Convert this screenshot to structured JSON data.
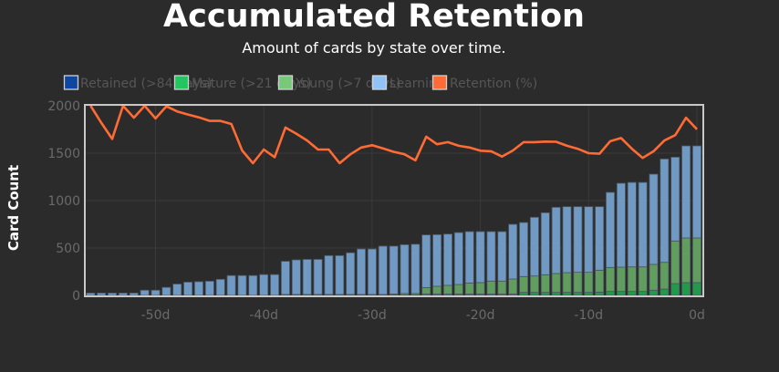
{
  "chart_data": {
    "type": "bar",
    "title": "Accumulated Retention",
    "subtitle": "Amount of cards by state over time.",
    "ylabel": "Card Count",
    "xlabel": "",
    "ylim": [
      0,
      2000
    ],
    "xlim": [
      -56,
      0
    ],
    "retention_ylim": [
      0,
      100
    ],
    "stacked": true,
    "grid": true,
    "legend_position": "top",
    "yticks": [
      "0",
      "500",
      "1000",
      "1500",
      "2000"
    ],
    "ytick_values": [
      0,
      500,
      1000,
      1500,
      2000
    ],
    "xticks": [
      "-50d",
      "-40d",
      "-30d",
      "-20d",
      "-10d",
      "0d"
    ],
    "xtick_values": [
      -50,
      -40,
      -30,
      -20,
      -10,
      0
    ],
    "x": [
      -56,
      -55,
      -54,
      -53,
      -52,
      -51,
      -50,
      -49,
      -48,
      -47,
      -46,
      -45,
      -44,
      -43,
      -42,
      -41,
      -40,
      -39,
      -38,
      -37,
      -36,
      -35,
      -34,
      -33,
      -32,
      -31,
      -30,
      -29,
      -28,
      -27,
      -26,
      -25,
      -24,
      -23,
      -22,
      -21,
      -20,
      -19,
      -18,
      -17,
      -16,
      -15,
      -14,
      -13,
      -12,
      -11,
      -10,
      -9,
      -8,
      -7,
      -6,
      -5,
      -4,
      -3,
      -2,
      -1,
      0
    ],
    "series": [
      {
        "name": "Retained (>84 days)",
        "kind": "bar",
        "color": "#0d47a1",
        "values": [
          0,
          0,
          0,
          0,
          0,
          0,
          0,
          0,
          0,
          0,
          0,
          0,
          0,
          0,
          0,
          0,
          0,
          0,
          0,
          0,
          0,
          0,
          0,
          0,
          0,
          0,
          0,
          0,
          0,
          0,
          0,
          0,
          0,
          0,
          0,
          0,
          0,
          0,
          0,
          0,
          0,
          0,
          0,
          0,
          0,
          0,
          0,
          0,
          0,
          0,
          0,
          0,
          0,
          0,
          0,
          0,
          0
        ]
      },
      {
        "name": "Mature (>21 days)",
        "kind": "bar",
        "color": "#22c55e",
        "values": [
          0,
          0,
          0,
          0,
          0,
          0,
          0,
          0,
          0,
          0,
          0,
          0,
          0,
          0,
          0,
          0,
          0,
          0,
          0,
          0,
          0,
          0,
          0,
          0,
          0,
          0,
          0,
          0,
          5,
          5,
          5,
          15,
          15,
          15,
          15,
          15,
          15,
          15,
          15,
          15,
          32,
          32,
          32,
          32,
          32,
          32,
          32,
          35,
          42,
          42,
          42,
          42,
          55,
          67,
          125,
          135,
          135
        ]
      },
      {
        "name": "Young (>7 days)",
        "kind": "bar",
        "color": "#77c878",
        "values": [
          0,
          0,
          0,
          0,
          0,
          0,
          0,
          0,
          0,
          0,
          0,
          0,
          0,
          0,
          0,
          0,
          0,
          0,
          10,
          10,
          10,
          10,
          10,
          10,
          10,
          10,
          10,
          10,
          10,
          15,
          15,
          68,
          81,
          91,
          100,
          116,
          120,
          136,
          136,
          158,
          167,
          173,
          186,
          199,
          208,
          212,
          212,
          231,
          253,
          256,
          259,
          259,
          272,
          282,
          449,
          471,
          471
        ]
      },
      {
        "name": "Learning",
        "kind": "bar",
        "color": "#90c4f9",
        "values": [
          25,
          25,
          25,
          25,
          25,
          55,
          55,
          85,
          120,
          140,
          145,
          150,
          170,
          210,
          210,
          210,
          220,
          220,
          350,
          365,
          370,
          370,
          410,
          410,
          440,
          480,
          480,
          510,
          505,
          515,
          520,
          555,
          545,
          541,
          548,
          542,
          538,
          522,
          522,
          577,
          570,
          619,
          654,
          698,
          696,
          692,
          692,
          670,
          792,
          885,
          891,
          891,
          952,
          1090,
          884,
          971,
          971
        ]
      },
      {
        "name": "Retention (%)",
        "kind": "line",
        "color": "#ff6b35",
        "values": [
          100,
          90.9,
          82.5,
          100,
          93.7,
          100,
          93.3,
          99.7,
          97,
          95.4,
          93.9,
          92,
          92,
          90.4,
          76.4,
          69.7,
          76.9,
          72.9,
          88.5,
          85.3,
          81.7,
          76.9,
          76.9,
          69.7,
          74.4,
          78,
          79.2,
          77.5,
          75.7,
          74.4,
          71.2,
          83.7,
          79.7,
          80.8,
          78.9,
          78,
          76.3,
          76,
          73.2,
          76.4,
          80.8,
          80.8,
          81.1,
          81,
          78.9,
          77.3,
          75,
          74.7,
          81.3,
          83,
          77.3,
          72.5,
          76,
          81.7,
          84.5,
          93.7,
          87.6
        ]
      }
    ]
  }
}
